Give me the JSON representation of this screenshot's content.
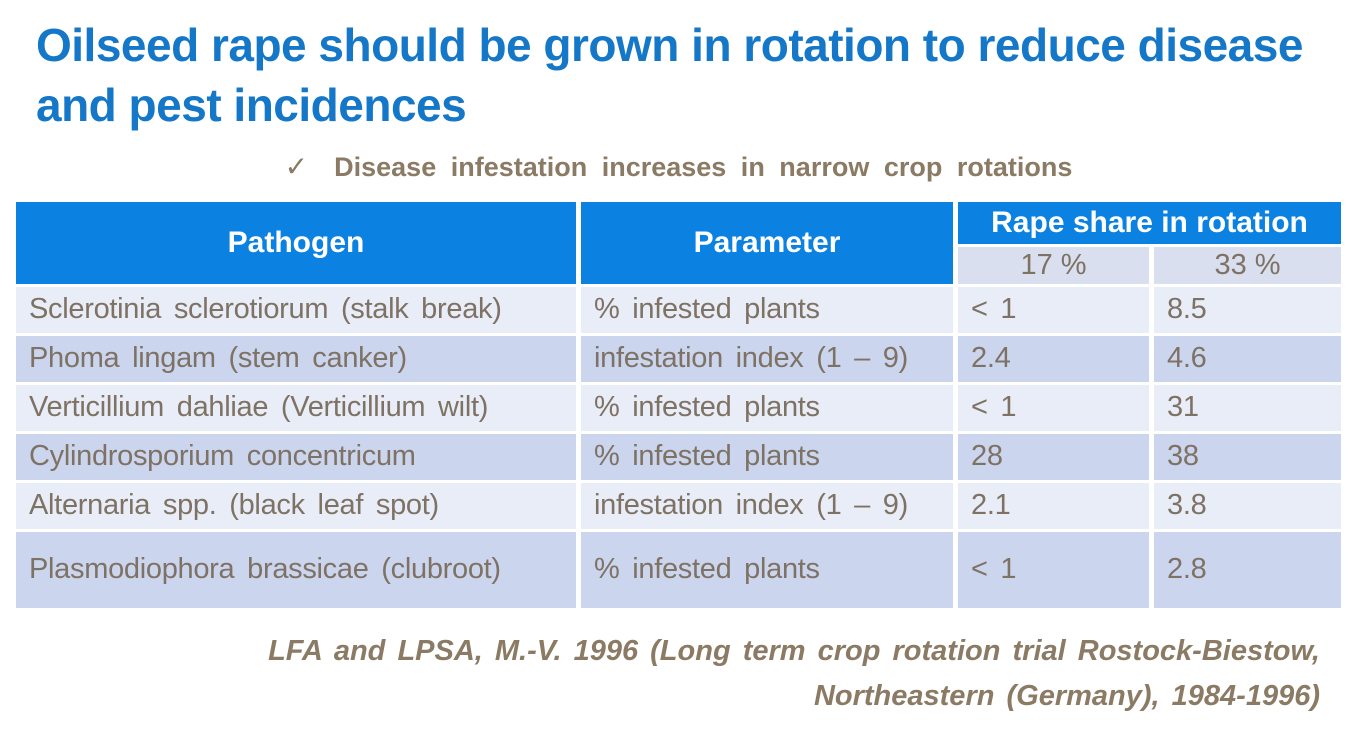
{
  "slide": {
    "title": "Oilseed rape should be grown in rotation to reduce disease and pest incidences",
    "bullet": {
      "check_icon": "✓",
      "text": "Disease infestation increases in narrow crop rotations"
    },
    "citation": {
      "line1": "LFA and LPSA, M.-V. 1996 (Long term crop rotation trial Rostock-Biestow,",
      "line2": "Northeastern (Germany), 1984-1996)"
    }
  },
  "table": {
    "columns": {
      "pathogen": "Pathogen",
      "parameter": "Parameter",
      "rape_share_group": "Rape share in rotation",
      "share_17": "17 %",
      "share_33": "33 %"
    },
    "rows": [
      {
        "pathogen": "Sclerotinia sclerotiorum (stalk break)",
        "parameter": "% infested plants",
        "v17": "< 1",
        "v33": "8.5"
      },
      {
        "pathogen": "Phoma lingam (stem canker)",
        "parameter": "infestation index (1 – 9)",
        "v17": "2.4",
        "v33": "4.6"
      },
      {
        "pathogen": "Verticillium dahliae (Verticillium wilt)",
        "parameter": "% infested plants",
        "v17": "< 1",
        "v33": "31"
      },
      {
        "pathogen": "Cylindrosporium concentricum",
        "parameter": "% infested plants",
        "v17": "28",
        "v33": "38"
      },
      {
        "pathogen": "Alternaria spp. (black leaf spot)",
        "parameter": "infestation index (1 – 9)",
        "v17": "2.1",
        "v33": "3.8"
      },
      {
        "pathogen": "Plasmodiophora brassicae (clubroot)",
        "parameter": "% infested plants",
        "v17": "< 1",
        "v33": "2.8"
      }
    ]
  },
  "colors": {
    "title_blue": "#1577c8",
    "header_blue": "#0b82e1",
    "header_text": "#ffffff",
    "subheader_bg": "#d9dfef",
    "row_light": "#e9edf8",
    "row_dark": "#cbd5ee",
    "body_text": "#7e7264",
    "accent_text": "#8b7a64"
  }
}
